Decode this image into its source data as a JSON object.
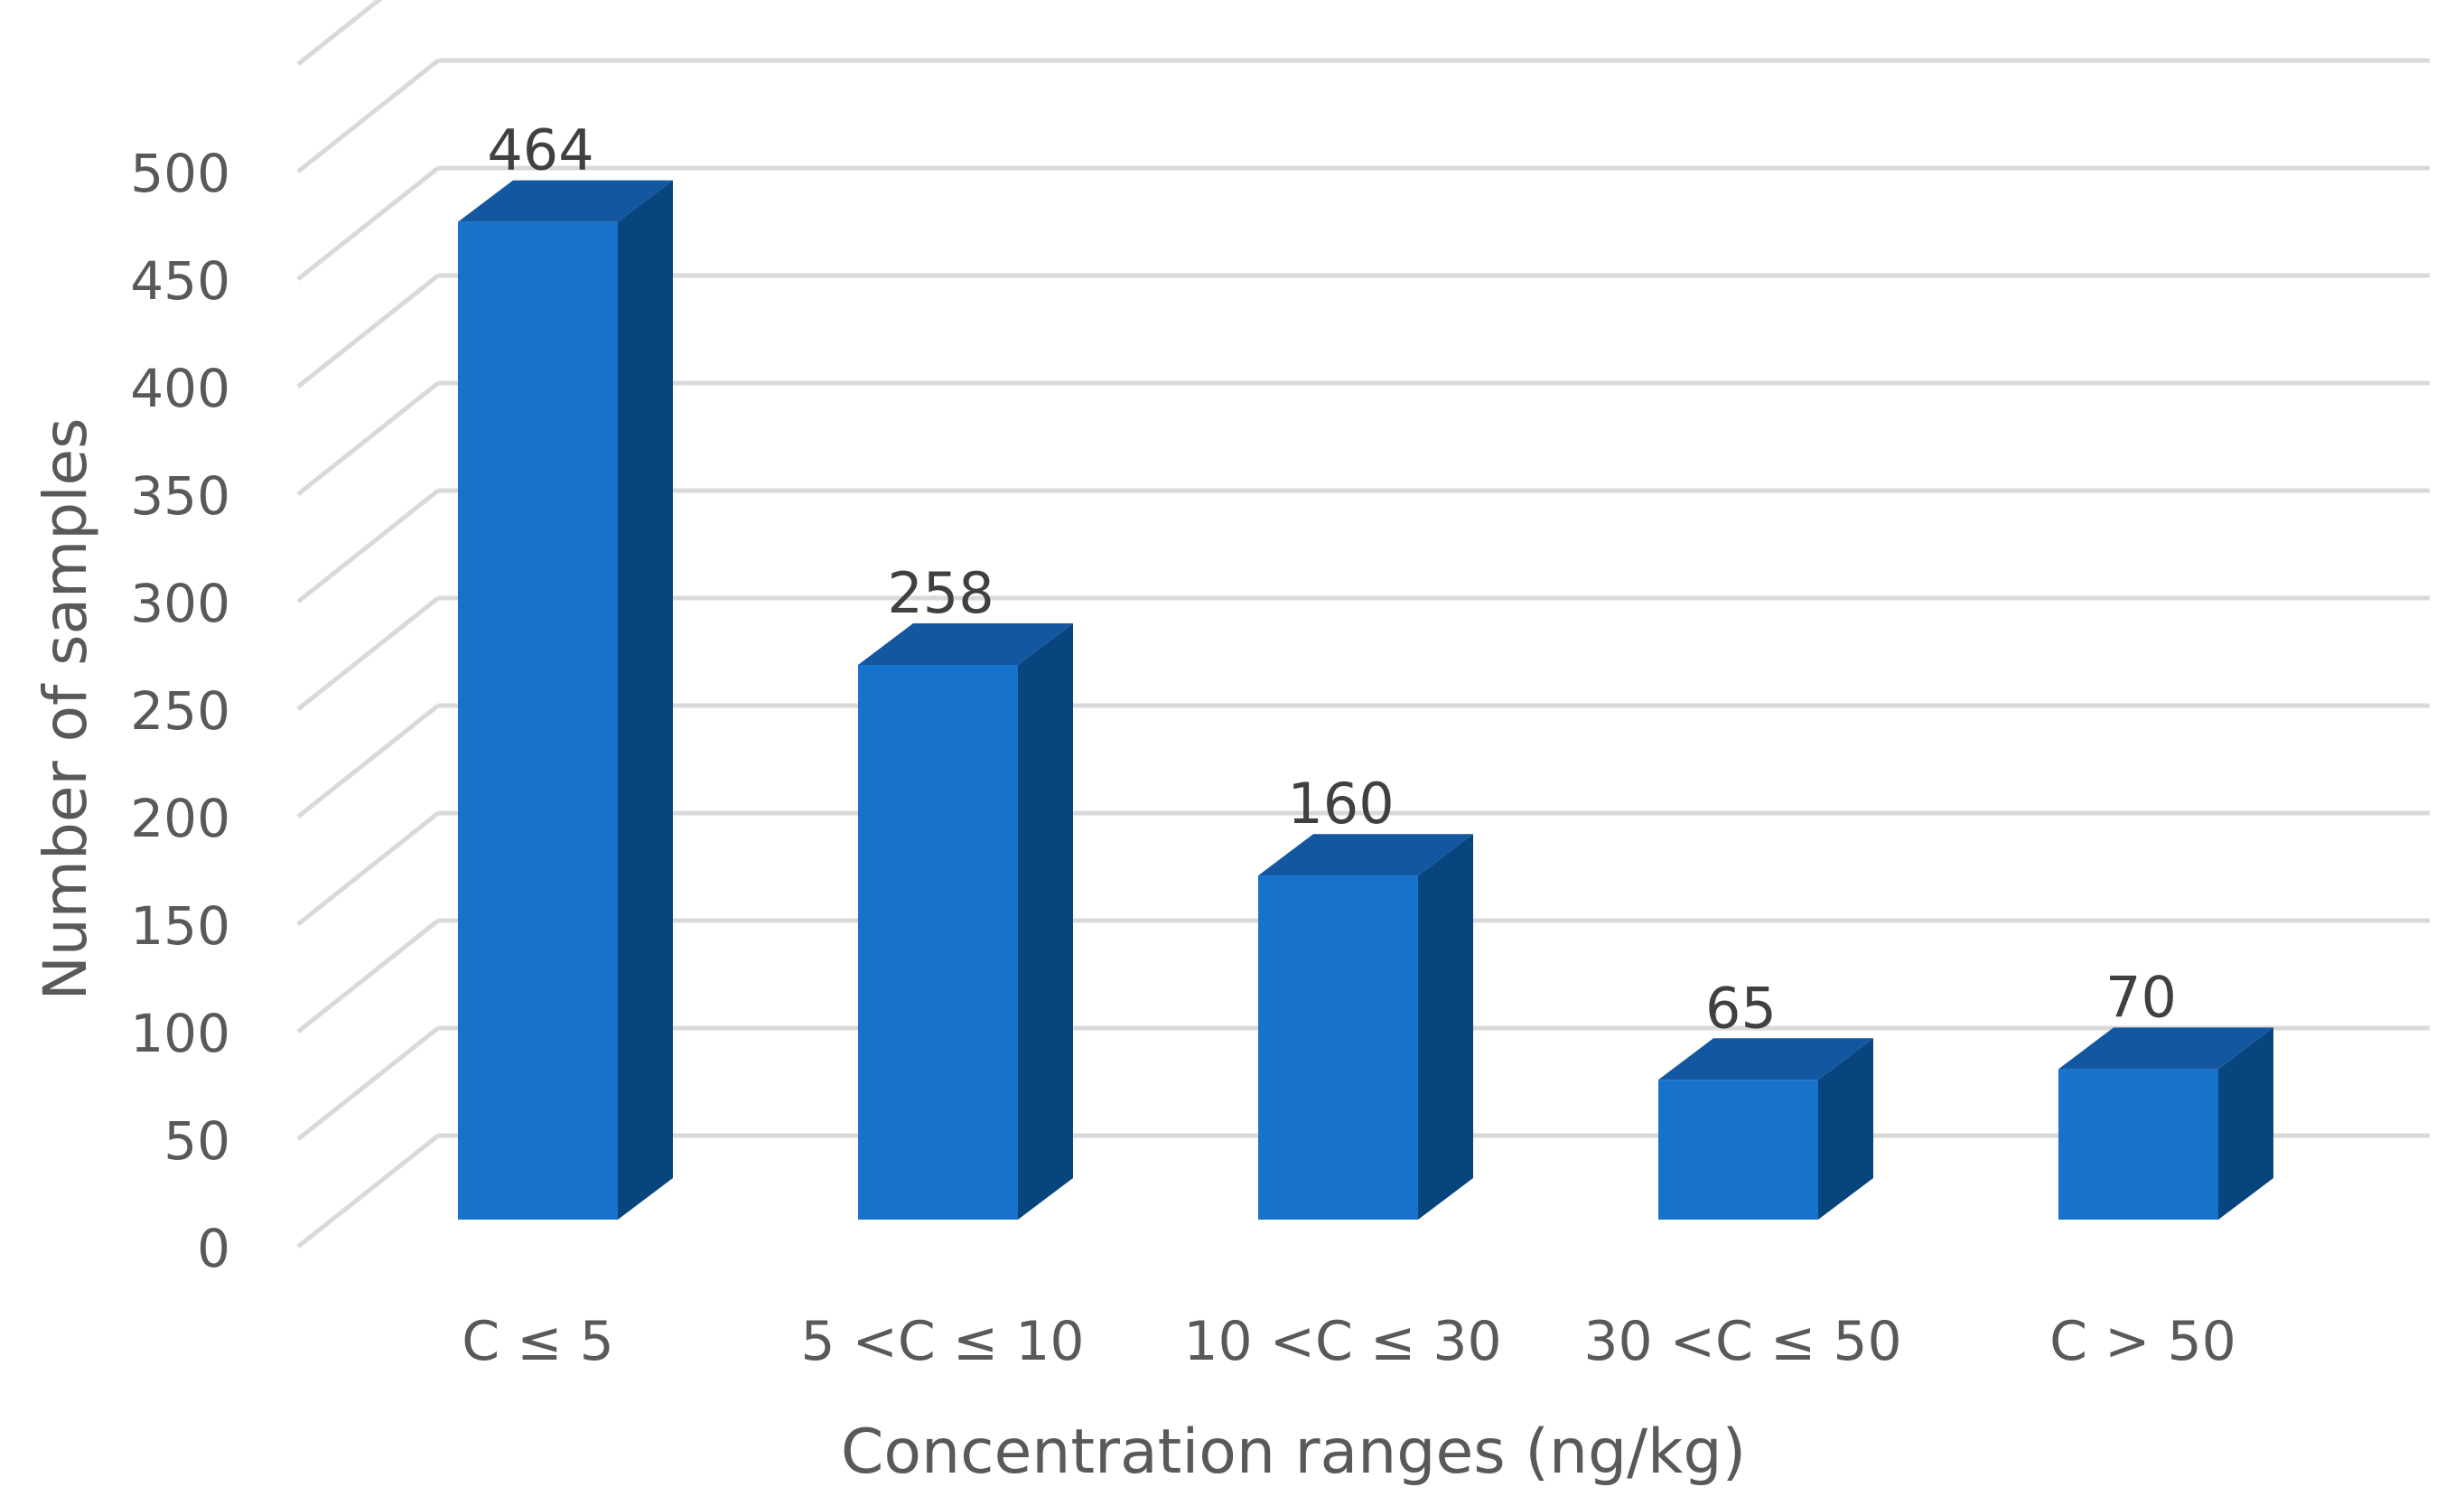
{
  "chart_data": {
    "type": "bar",
    "style": "3d-column",
    "categories": [
      "C ≤ 5",
      "5 <C ≤ 10",
      "10 <C ≤ 30",
      "30 <C ≤ 50",
      "C > 50"
    ],
    "series": [
      {
        "values": [
          464,
          258,
          160,
          65,
          70
        ]
      }
    ],
    "data_labels": [
      "464",
      "258",
      "160",
      "65",
      "70"
    ],
    "xlabel": "Concentration ranges (ng/kg)",
    "ylabel": "Number of samples",
    "ylim": [
      0,
      550
    ],
    "yticks": [
      0,
      50,
      100,
      150,
      200,
      250,
      300,
      350,
      400,
      450,
      500
    ],
    "grid": true,
    "legend": "none",
    "colors": {
      "bar_front": "#1672CA",
      "bar_side": "#08457F",
      "bar_top": "#1257A0",
      "grid": "#D9D9D9",
      "text": "#595959",
      "label": "#404040"
    }
  }
}
